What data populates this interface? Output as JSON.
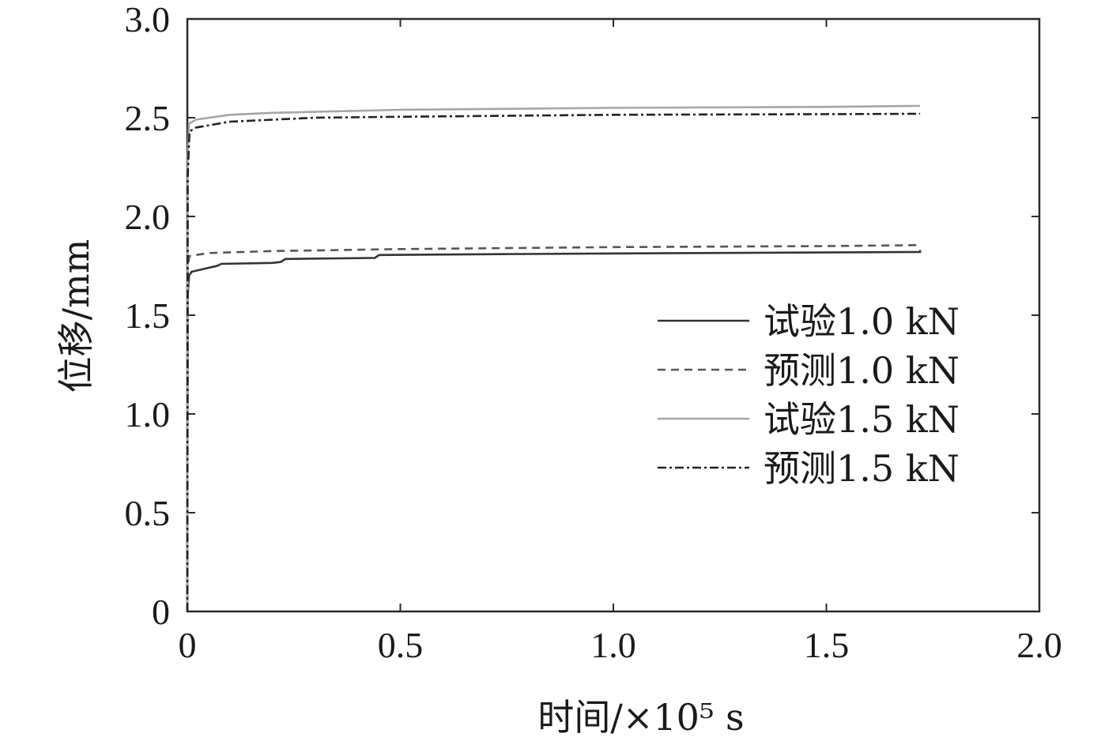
{
  "chart_data": {
    "type": "line",
    "title": "",
    "xlabel": "时间/×10⁵ s",
    "ylabel": "位移/mm",
    "xlim": [
      0,
      2.0
    ],
    "ylim": [
      0,
      3.0
    ],
    "x_ticks": [
      "0",
      "0.5",
      "1.0",
      "1.5",
      "2.0"
    ],
    "y_ticks": [
      "0",
      "0.5",
      "1.0",
      "1.5",
      "2.0",
      "2.5",
      "3.0"
    ],
    "grid": false,
    "legend_position": "right",
    "series": [
      {
        "name": "试验1.0 kN",
        "color": "#333333",
        "dash": "solid",
        "points": [
          [
            0,
            0
          ],
          [
            0.001,
            1.6
          ],
          [
            0.004,
            1.7
          ],
          [
            0.01,
            1.72
          ],
          [
            0.03,
            1.73
          ],
          [
            0.05,
            1.74
          ],
          [
            0.06,
            1.745
          ],
          [
            0.07,
            1.75
          ],
          [
            0.08,
            1.76
          ],
          [
            0.2,
            1.765
          ],
          [
            0.22,
            1.77
          ],
          [
            0.23,
            1.785
          ],
          [
            0.44,
            1.79
          ],
          [
            0.45,
            1.805
          ],
          [
            0.8,
            1.81
          ],
          [
            1.2,
            1.815
          ],
          [
            1.72,
            1.82
          ],
          [
            1.72,
            1.83
          ]
        ]
      },
      {
        "name": "预测1.0 kN",
        "color": "#555555",
        "dash": "dashed",
        "points": [
          [
            0,
            0
          ],
          [
            0.001,
            1.75
          ],
          [
            0.005,
            1.8
          ],
          [
            0.05,
            1.815
          ],
          [
            0.2,
            1.825
          ],
          [
            0.5,
            1.835
          ],
          [
            1.0,
            1.845
          ],
          [
            1.5,
            1.85
          ],
          [
            1.72,
            1.855
          ]
        ]
      },
      {
        "name": "试验1.5 kN",
        "color": "#a6a6a6",
        "dash": "solid",
        "points": [
          [
            0,
            0
          ],
          [
            0.001,
            2.3
          ],
          [
            0.004,
            2.47
          ],
          [
            0.02,
            2.49
          ],
          [
            0.1,
            2.515
          ],
          [
            0.2,
            2.525
          ],
          [
            0.5,
            2.54
          ],
          [
            1.0,
            2.55
          ],
          [
            1.5,
            2.555
          ],
          [
            1.72,
            2.56
          ]
        ]
      },
      {
        "name": "预测1.5 kN",
        "color": "#222222",
        "dash": "dashdot",
        "points": [
          [
            0,
            0
          ],
          [
            0.001,
            2.2
          ],
          [
            0.005,
            2.43
          ],
          [
            0.02,
            2.45
          ],
          [
            0.1,
            2.48
          ],
          [
            0.3,
            2.5
          ],
          [
            0.5,
            2.505
          ],
          [
            1.0,
            2.515
          ],
          [
            1.5,
            2.518
          ],
          [
            1.72,
            2.52
          ]
        ]
      }
    ]
  }
}
